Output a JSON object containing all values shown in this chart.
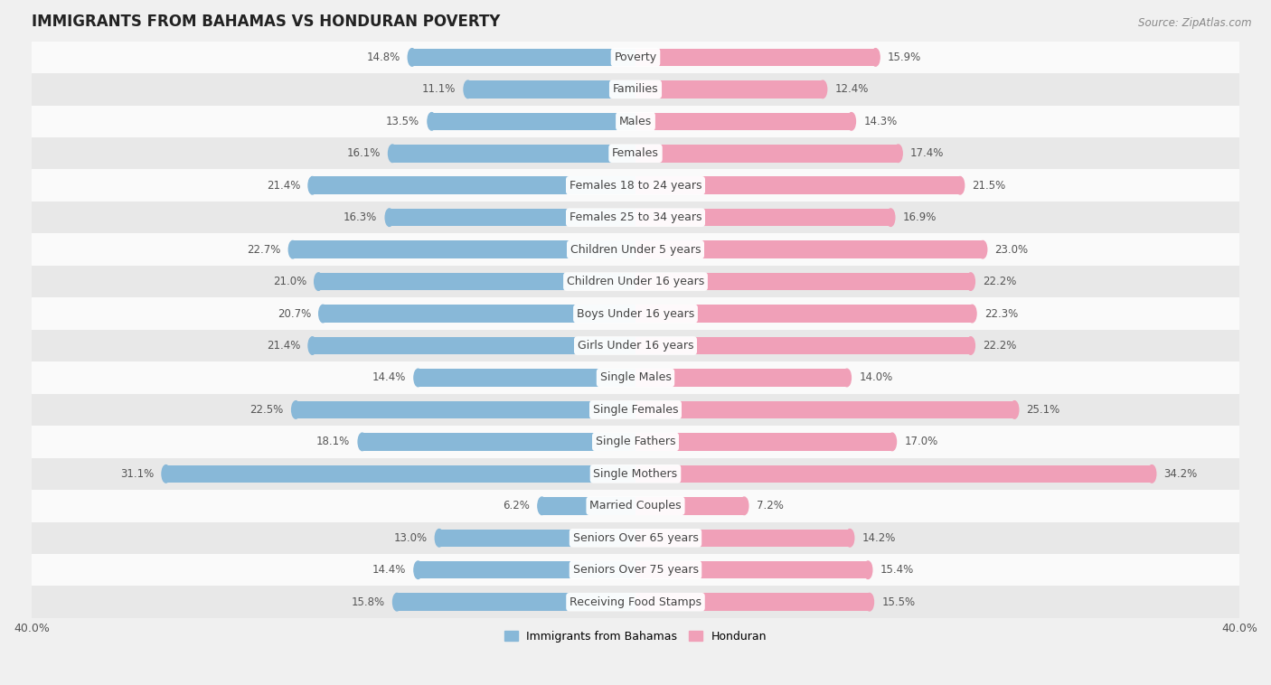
{
  "title": "IMMIGRANTS FROM BAHAMAS VS HONDURAN POVERTY",
  "source": "Source: ZipAtlas.com",
  "categories": [
    "Poverty",
    "Families",
    "Males",
    "Females",
    "Females 18 to 24 years",
    "Females 25 to 34 years",
    "Children Under 5 years",
    "Children Under 16 years",
    "Boys Under 16 years",
    "Girls Under 16 years",
    "Single Males",
    "Single Females",
    "Single Fathers",
    "Single Mothers",
    "Married Couples",
    "Seniors Over 65 years",
    "Seniors Over 75 years",
    "Receiving Food Stamps"
  ],
  "bahamas_values": [
    14.8,
    11.1,
    13.5,
    16.1,
    21.4,
    16.3,
    22.7,
    21.0,
    20.7,
    21.4,
    14.4,
    22.5,
    18.1,
    31.1,
    6.2,
    13.0,
    14.4,
    15.8
  ],
  "honduran_values": [
    15.9,
    12.4,
    14.3,
    17.4,
    21.5,
    16.9,
    23.0,
    22.2,
    22.3,
    22.2,
    14.0,
    25.1,
    17.0,
    34.2,
    7.2,
    14.2,
    15.4,
    15.5
  ],
  "bahamas_color": "#88b8d8",
  "honduran_color": "#f0a0b8",
  "background_color": "#f0f0f0",
  "row_color_odd": "#e8e8e8",
  "row_color_even": "#fafafa",
  "xlim": 40.0,
  "bar_height": 0.55,
  "legend_label_bahamas": "Immigrants from Bahamas",
  "legend_label_honduran": "Honduran",
  "title_fontsize": 12,
  "label_fontsize": 9,
  "value_fontsize": 8.5,
  "tick_fontsize": 9,
  "source_fontsize": 8.5
}
